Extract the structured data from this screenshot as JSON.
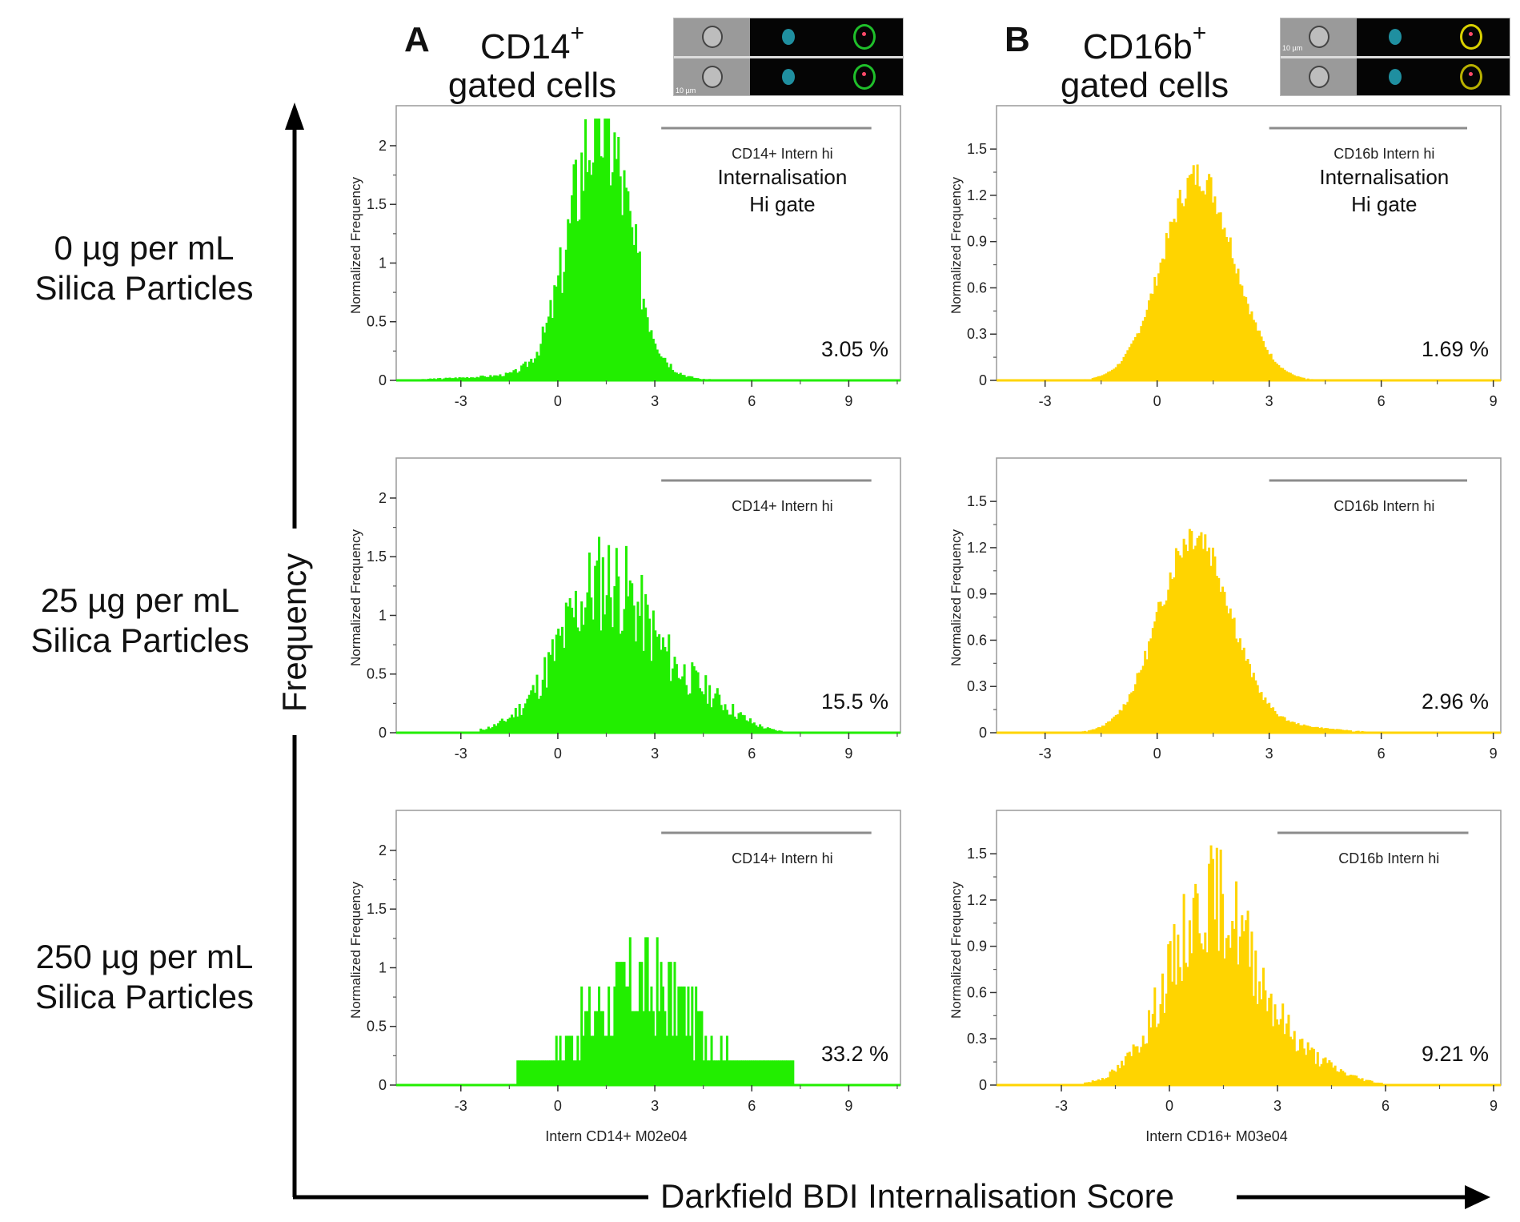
{
  "figure": {
    "columns": [
      {
        "letter": "A",
        "marker": "CD14",
        "sup": "+",
        "subtitle": "gated cells",
        "scale_bar": "10 µm",
        "fluor_color": "#1fbf2a"
      },
      {
        "letter": "B",
        "marker": "CD16b",
        "sup": "+",
        "subtitle": "gated cells",
        "scale_bar": "10 µm",
        "fluor_color": "#d8d000"
      }
    ],
    "rows": [
      {
        "line1": "0  µg per mL",
        "line2": "Silica Particles"
      },
      {
        "line1": "25 µg per mL",
        "line2": "Silica Particles"
      },
      {
        "line1": "250 µg per mL",
        "line2": "Silica Particles"
      }
    ],
    "y_arrow_label": "Frequency",
    "x_arrow_label": "Darkfield BDI Internalisation Score"
  },
  "chart_data": [
    {
      "id": "A-0",
      "type": "bar",
      "title": "",
      "color": "#22ee00",
      "ylabel": "Normalized Frequency",
      "xlabel": "",
      "xlim": [
        -5,
        10.6
      ],
      "ylim": [
        0,
        2.3
      ],
      "xticks": [
        -3,
        0,
        3,
        6,
        9
      ],
      "yticks": [
        0,
        0.5,
        1,
        1.5,
        2
      ],
      "ytick_labels": [
        "0",
        "0.5",
        "1",
        "1.5",
        "2"
      ],
      "gate_label": "CD14+ Intern hi",
      "gate_range": [
        3.2,
        9.7
      ],
      "annotation": [
        "Internalisation",
        "Hi gate"
      ],
      "percent": "3.05 %",
      "dist": {
        "mean": 1.3,
        "sd": 0.9,
        "peak": 2.18,
        "tail_mean": 0,
        "tail_amp": 0.05,
        "tail_sd": 2.5,
        "xmin": -4.3,
        "xmax": 7.1,
        "seed": 3,
        "noise": 0.28
      }
    },
    {
      "id": "B-0",
      "type": "bar",
      "title": "",
      "color": "#ffd400",
      "ylabel": "Normalized Frequency",
      "xlabel": "",
      "xlim": [
        -4.3,
        9.2
      ],
      "ylim": [
        0,
        1.75
      ],
      "xticks": [
        -3,
        0,
        3,
        6,
        9
      ],
      "yticks": [
        0,
        0.3,
        0.6,
        0.9,
        1.2,
        1.5
      ],
      "ytick_labels": [
        "0",
        "0.3",
        "0.6",
        "0.9",
        "1.2",
        "1.5"
      ],
      "gate_label": "CD16b Intern hi",
      "gate_range": [
        3.0,
        8.3
      ],
      "annotation": [
        "Internalisation",
        "Hi gate"
      ],
      "percent": "1.69 %",
      "dist": {
        "mean": 1.1,
        "sd": 0.95,
        "peak": 1.33,
        "tail_mean": 0,
        "tail_amp": 0.0,
        "tail_sd": 2.0,
        "xmin": -3.2,
        "xmax": 6.0,
        "seed": 7,
        "noise": 0.08
      }
    },
    {
      "id": "A-25",
      "type": "bar",
      "title": "",
      "color": "#22ee00",
      "ylabel": "Normalized Frequency",
      "xlabel": "",
      "xlim": [
        -5,
        10.6
      ],
      "ylim": [
        0,
        2.3
      ],
      "xticks": [
        -3,
        0,
        3,
        6,
        9
      ],
      "yticks": [
        0,
        0.5,
        1,
        1.5,
        2
      ],
      "ytick_labels": [
        "0",
        "0.5",
        "1",
        "1.5",
        "2"
      ],
      "gate_label": "CD14+ Intern hi",
      "gate_range": [
        3.2,
        9.7
      ],
      "annotation": [],
      "percent": "15.5 %",
      "dist": {
        "mean": 1.5,
        "sd": 1.4,
        "peak": 1.3,
        "tail_mean": 4.5,
        "tail_amp": 0.25,
        "tail_sd": 1.0,
        "xmin": -2.4,
        "xmax": 8.0,
        "seed": 11,
        "noise": 0.35
      }
    },
    {
      "id": "B-25",
      "type": "bar",
      "title": "",
      "color": "#ffd400",
      "ylabel": "Normalized Frequency",
      "xlabel": "",
      "xlim": [
        -4.3,
        9.2
      ],
      "ylim": [
        0,
        1.75
      ],
      "xticks": [
        -3,
        0,
        3,
        6,
        9
      ],
      "yticks": [
        0,
        0.3,
        0.6,
        0.9,
        1.2,
        1.5
      ],
      "ytick_labels": [
        "0",
        "0.3",
        "0.6",
        "0.9",
        "1.2",
        "1.5"
      ],
      "gate_label": "CD16b Intern hi",
      "gate_range": [
        3.0,
        8.3
      ],
      "annotation": [],
      "percent": "2.96 %",
      "dist": {
        "mean": 1.0,
        "sd": 0.95,
        "peak": 1.3,
        "tail_mean": 3.5,
        "tail_amp": 0.04,
        "tail_sd": 1.2,
        "xmin": -3.8,
        "xmax": 6.2,
        "seed": 13,
        "noise": 0.1
      }
    },
    {
      "id": "A-250",
      "type": "bar",
      "title": "",
      "color": "#22ee00",
      "ylabel": "Normalized Frequency",
      "xlabel": "Intern CD14+ M02e04",
      "xlim": [
        -5,
        10.6
      ],
      "ylim": [
        0,
        2.3
      ],
      "xticks": [
        -3,
        0,
        3,
        6,
        9
      ],
      "yticks": [
        0,
        0.5,
        1,
        1.5,
        2
      ],
      "ytick_labels": [
        "0",
        "0.5",
        "1",
        "1.5",
        "2"
      ],
      "gate_label": "CD14+ Intern hi",
      "gate_range": [
        3.2,
        9.7
      ],
      "annotation": [],
      "percent": "33.2 %",
      "dist": {
        "mean": 2.6,
        "sd": 1.8,
        "peak": 0.85,
        "tail_mean": 0,
        "tail_amp": 0,
        "tail_sd": 1.0,
        "xmin": -1.3,
        "xmax": 7.3,
        "seed": 17,
        "noise": 0.55,
        "quantize": 0.21
      }
    },
    {
      "id": "B-250",
      "type": "bar",
      "title": "",
      "color": "#ffd400",
      "ylabel": "Normalized Frequency",
      "xlabel": "Intern CD16+ M03e04",
      "xlim": [
        -4.8,
        9.2
      ],
      "ylim": [
        0,
        1.75
      ],
      "xticks": [
        -3,
        0,
        3,
        6,
        9
      ],
      "yticks": [
        0,
        0.3,
        0.6,
        0.9,
        1.2,
        1.5
      ],
      "ytick_labels": [
        "0",
        "0.3",
        "0.6",
        "0.9",
        "1.2",
        "1.5"
      ],
      "gate_label": "CD16b Intern hi",
      "gate_range": [
        3.0,
        8.3
      ],
      "annotation": [],
      "percent": "9.21 %",
      "dist": {
        "mean": 1.2,
        "sd": 1.2,
        "peak": 1.2,
        "tail_mean": 3.8,
        "tail_amp": 0.12,
        "tail_sd": 1.0,
        "xmin": -4.6,
        "xmax": 6.7,
        "seed": 19,
        "noise": 0.3
      }
    }
  ]
}
